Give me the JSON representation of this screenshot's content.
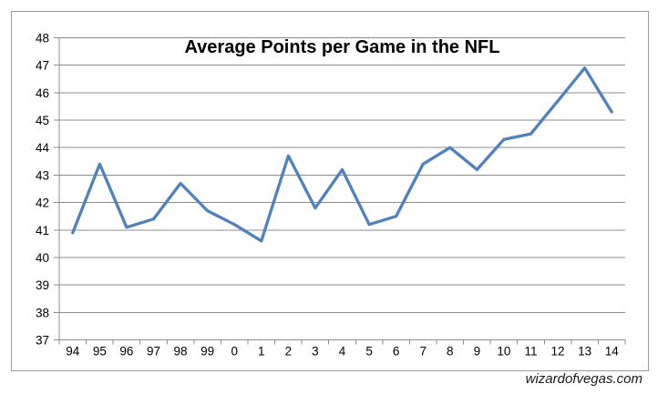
{
  "watermark": {
    "text": "wizardofvegas.com"
  },
  "chart_data": {
    "type": "line",
    "title": "Average Points per Game in the NFL",
    "categories": [
      "94",
      "95",
      "96",
      "97",
      "98",
      "99",
      "0",
      "1",
      "2",
      "3",
      "4",
      "5",
      "6",
      "7",
      "8",
      "9",
      "10",
      "11",
      "12",
      "13",
      "14"
    ],
    "series": [
      {
        "name": "Average points per game",
        "values": [
          40.9,
          43.4,
          41.1,
          41.4,
          42.7,
          41.7,
          41.2,
          40.6,
          43.7,
          41.8,
          43.2,
          41.2,
          41.5,
          43.4,
          44.0,
          43.2,
          44.3,
          44.5,
          45.7,
          46.9,
          45.3
        ]
      }
    ],
    "xlabel": "",
    "ylabel": "",
    "ylim": [
      37,
      48
    ],
    "yticks": [
      37,
      38,
      39,
      40,
      41,
      42,
      43,
      44,
      45,
      46,
      47,
      48
    ],
    "grid": true,
    "legend": "none",
    "colors": {
      "line": "#4F81BD",
      "gridline": "#8c8c8c",
      "axis": "#8c8c8c",
      "frame_border": "#9b9b9b",
      "tick_label": "#000000",
      "title": "#000000",
      "background": "#ffffff"
    }
  }
}
